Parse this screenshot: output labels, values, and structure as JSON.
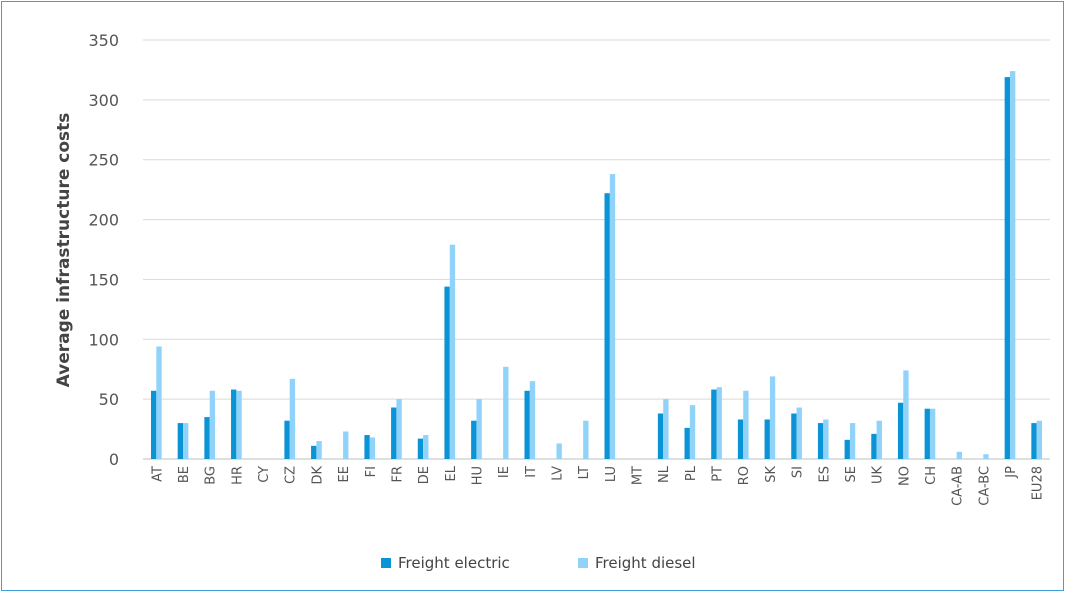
{
  "chart_data": {
    "type": "bar",
    "title": "",
    "xlabel": "",
    "ylabel": "Average infrastructure costs",
    "ylim": [
      0,
      350
    ],
    "yticks": [
      0,
      50,
      100,
      150,
      200,
      250,
      300,
      350
    ],
    "grid": true,
    "legend_position": "bottom",
    "categories": [
      "AT",
      "BE",
      "BG",
      "HR",
      "CY",
      "CZ",
      "DK",
      "EE",
      "FI",
      "FR",
      "DE",
      "EL",
      "HU",
      "IE",
      "IT",
      "LV",
      "LT",
      "LU",
      "MT",
      "NL",
      "PL",
      "PT",
      "RO",
      "SK",
      "SI",
      "ES",
      "SE",
      "UK",
      "NO",
      "CH",
      "CA-AB",
      "CA-BC",
      "JP",
      "EU28"
    ],
    "series": [
      {
        "name": "Freight electric",
        "color": "#0a93d5",
        "values": [
          57,
          30,
          35,
          58,
          0,
          32,
          11,
          0,
          20,
          43,
          17,
          144,
          32,
          0,
          57,
          0,
          0,
          222,
          0,
          38,
          26,
          58,
          33,
          33,
          38,
          30,
          16,
          21,
          47,
          42,
          0,
          0,
          319,
          30
        ]
      },
      {
        "name": "Freight diesel",
        "color": "#8fd3fb",
        "values": [
          94,
          30,
          57,
          57,
          0,
          67,
          15,
          23,
          18,
          50,
          20,
          179,
          50,
          77,
          65,
          13,
          32,
          238,
          0,
          50,
          45,
          60,
          57,
          69,
          43,
          33,
          30,
          32,
          74,
          42,
          6,
          4,
          324,
          32
        ]
      }
    ]
  }
}
